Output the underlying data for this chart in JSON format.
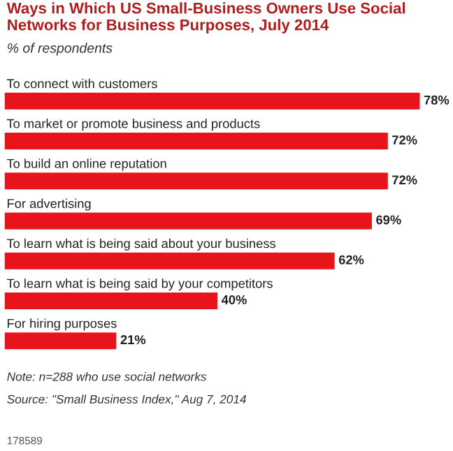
{
  "chart_data": {
    "type": "bar",
    "orientation": "horizontal",
    "title": "Ways in Which US Small-Business Owners Use Social Networks for Business Purposes, July 2014",
    "subtitle": "% of respondents",
    "categories": [
      "To connect with customers",
      "To market or promote business and products",
      "To build an online reputation",
      "For advertising",
      "To learn what is being said about your business",
      "To learn what is being said by your competitors",
      "For hiring purposes"
    ],
    "values": [
      78,
      72,
      72,
      69,
      62,
      40,
      21
    ],
    "value_labels": [
      "78%",
      "72%",
      "72%",
      "69%",
      "62%",
      "40%",
      "21%"
    ],
    "color": "#e8141b",
    "annotations": [
      "Note: n=288 who use social networks",
      "Source: \"Small Business Index,\" Aug 7, 2014",
      "178589"
    ]
  }
}
